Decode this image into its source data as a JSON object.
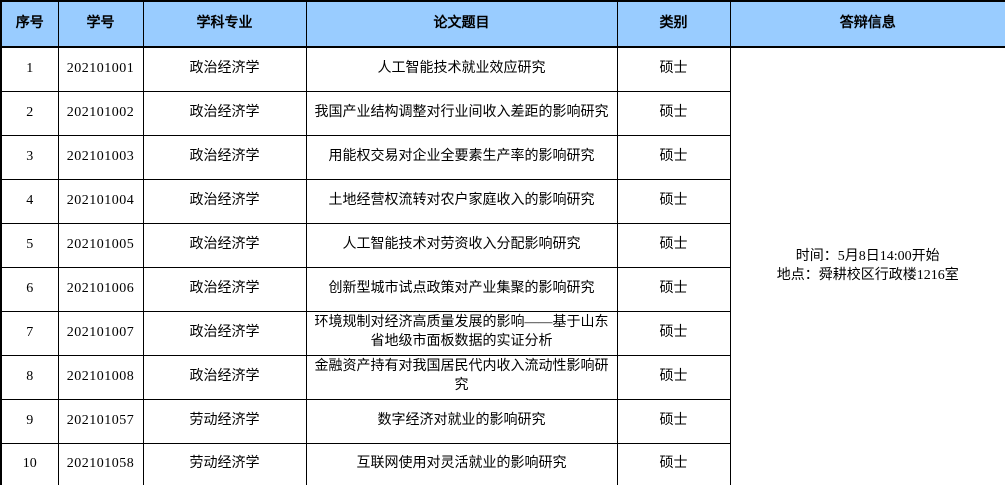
{
  "table": {
    "headers": {
      "no": "序号",
      "student_id": "学号",
      "major": "学科专业",
      "thesis_title": "论文题目",
      "category": "类别",
      "defense_info": "答辩信息"
    },
    "rows": [
      {
        "no": "1",
        "student_id": "202101001",
        "major": "政治经济学",
        "thesis_title": "人工智能技术就业效应研究",
        "category": "硕士"
      },
      {
        "no": "2",
        "student_id": "202101002",
        "major": "政治经济学",
        "thesis_title": "我国产业结构调整对行业间收入差距的影响研究",
        "category": "硕士"
      },
      {
        "no": "3",
        "student_id": "202101003",
        "major": "政治经济学",
        "thesis_title": "用能权交易对企业全要素生产率的影响研究",
        "category": "硕士"
      },
      {
        "no": "4",
        "student_id": "202101004",
        "major": "政治经济学",
        "thesis_title": "土地经营权流转对农户家庭收入的影响研究",
        "category": "硕士"
      },
      {
        "no": "5",
        "student_id": "202101005",
        "major": "政治经济学",
        "thesis_title": "人工智能技术对劳资收入分配影响研究",
        "category": "硕士"
      },
      {
        "no": "6",
        "student_id": "202101006",
        "major": "政治经济学",
        "thesis_title": "创新型城市试点政策对产业集聚的影响研究",
        "category": "硕士"
      },
      {
        "no": "7",
        "student_id": "202101007",
        "major": "政治经济学",
        "thesis_title": "环境规制对经济高质量发展的影响——基于山东省地级市面板数据的实证分析",
        "category": "硕士"
      },
      {
        "no": "8",
        "student_id": "202101008",
        "major": "政治经济学",
        "thesis_title": "金融资产持有对我国居民代内收入流动性影响研究",
        "category": "硕士"
      },
      {
        "no": "9",
        "student_id": "202101057",
        "major": "劳动经济学",
        "thesis_title": "数字经济对就业的影响研究",
        "category": "硕士"
      },
      {
        "no": "10",
        "student_id": "202101058",
        "major": "劳动经济学",
        "thesis_title": "互联网使用对灵活就业的影响研究",
        "category": "硕士"
      }
    ],
    "defense_info": {
      "time_line": "时间：5月8日14:00开始",
      "place_line": "地点：舜耕校区行政楼1216室"
    }
  },
  "colors": {
    "header_bg": "#99ccff",
    "border": "#000000",
    "text": "#000000"
  }
}
